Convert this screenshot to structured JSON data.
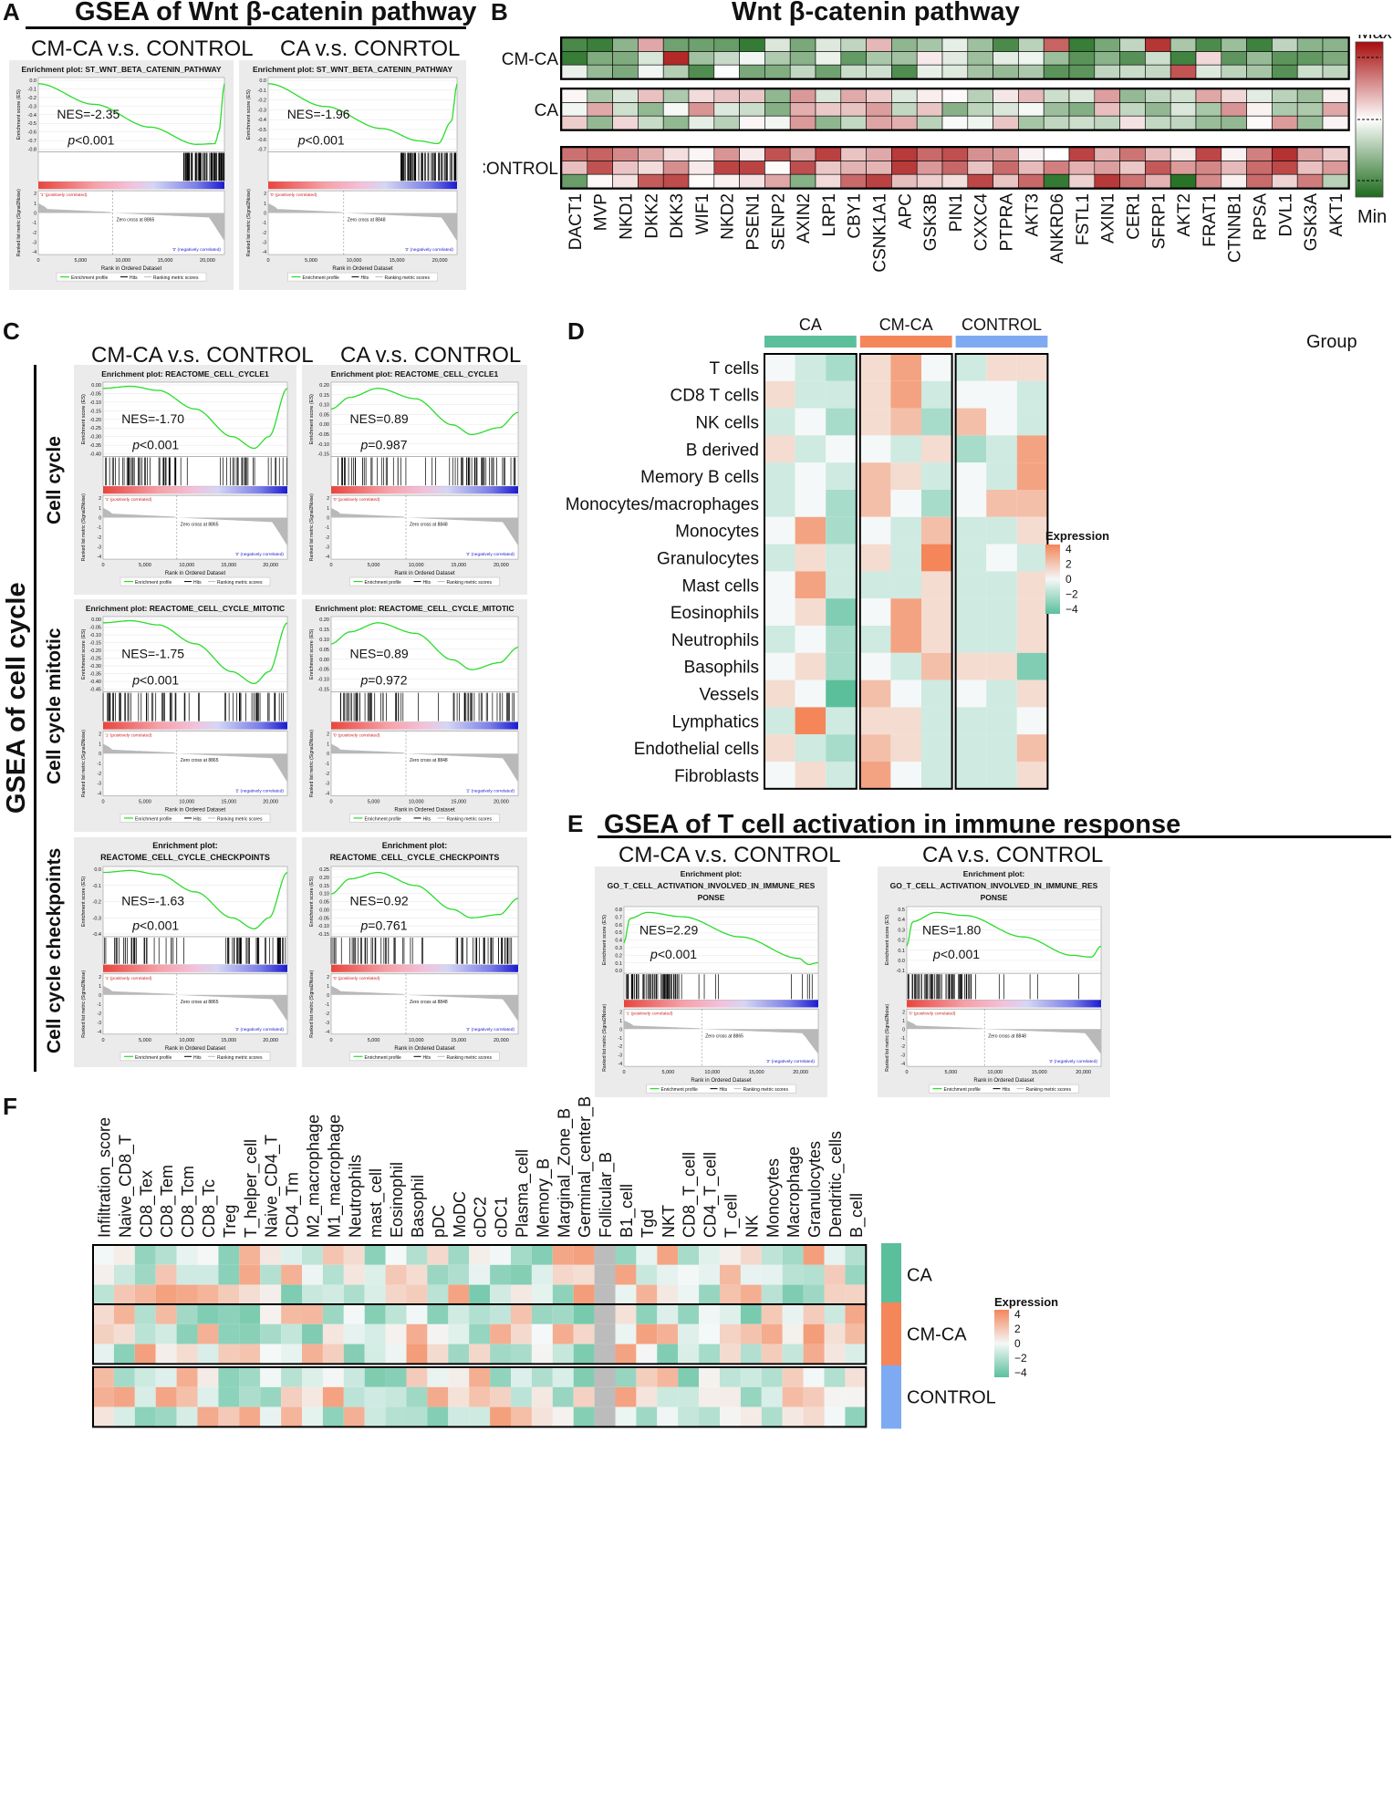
{
  "panels": {
    "a": "A",
    "b": "B",
    "c": "C",
    "d": "D",
    "e": "E",
    "f": "F"
  },
  "panel_a": {
    "title": "GSEA of Wnt β-catenin pathway",
    "col_titles": [
      "CM-CA v.s. CONTROL",
      "CA v.s. CONRTOL"
    ],
    "plots": [
      {
        "plot_title": "Enrichment plot: ST_WNT_BETA_CATENIN_PATHWAY",
        "nes": "NES=-2.35",
        "p": "p<0.001",
        "zero_cross": "Zero cross at 8865",
        "pos_label": "'1' (positively correlated)",
        "neg_label": "'2' (negatively correlated)",
        "es_ticks": [
          "0.0",
          "-0.1",
          "-0.2",
          "-0.3",
          "-0.4",
          "-0.5",
          "-0.6",
          "-0.7",
          "-0.8"
        ]
      },
      {
        "plot_title": "Enrichment plot: ST_WNT_BETA_CATENIN_PATHWAY",
        "nes": "NES=-1.96",
        "p": "p<0.001",
        "zero_cross": "Zero cross at 8848",
        "pos_label": "'0' (positively correlated)",
        "neg_label": "'2' (negatively correlated)",
        "es_ticks": [
          "0.0",
          "-0.1",
          "-0.2",
          "-0.3",
          "-0.4",
          "-0.5",
          "-0.6",
          "-0.7"
        ]
      }
    ]
  },
  "panel_b": {
    "title": "Wnt β-catenin pathway",
    "row_groups": [
      "CM-CA",
      "CA",
      "CONTROL"
    ],
    "genes": [
      "DACT1",
      "MVP",
      "NKD1",
      "DKK2",
      "DKK3",
      "WIF1",
      "NKD2",
      "PSEN1",
      "SENP2",
      "AXIN2",
      "LRP1",
      "CBY1",
      "CSNK1A1",
      "APC",
      "GSK3B",
      "PIN1",
      "CXXC4",
      "PTPRA",
      "AKT3",
      "ANKRD6",
      "FSTL1",
      "AXIN1",
      "CER1",
      "SFRP1",
      "AKT2",
      "FRAT1",
      "CTNNB1",
      "RPSA",
      "DVL1",
      "GSK3A",
      "AKT1"
    ],
    "legend_max": "Max",
    "legend_min": "Min"
  },
  "panel_c": {
    "col_titles": [
      "CM-CA v.s. CONTROL",
      "CA v.s. CONTROL"
    ],
    "side_title": "GSEA of cell cycle",
    "row_titles": [
      "Cell cycle",
      "Cell cycle mitotic",
      "Cell cycle checkpoints"
    ],
    "plots": [
      {
        "plot_title": "Enrichment plot: REACTOME_CELL_CYCLE1",
        "nes": "NES=-1.70",
        "p": "p<0.001",
        "zero_cross": "Zero cross at 8865",
        "pos_label": "'1' (positively correlated)",
        "neg_label": "'2' (negatively correlated)",
        "es_ticks": [
          "0.00",
          "-0.05",
          "-0.10",
          "-0.15",
          "-0.20",
          "-0.25",
          "-0.30",
          "-0.35",
          "-0.40"
        ]
      },
      {
        "plot_title": "Enrichment plot: REACTOME_CELL_CYCLE1",
        "nes": "NES=0.89",
        "p": "p=0.987",
        "zero_cross": "Zero cross at 8848",
        "pos_label": "'0' (positively correlated)",
        "neg_label": "'2' (negatively correlated)",
        "es_ticks": [
          "0.20",
          "0.15",
          "0.10",
          "0.05",
          "0.00",
          "-0.05",
          "-0.10",
          "-0.15"
        ]
      },
      {
        "plot_title": "Enrichment plot: REACTOME_CELL_CYCLE_MITOTIC",
        "nes": "NES=-1.75",
        "p": "p<0.001",
        "zero_cross": "Zero cross at 8865",
        "pos_label": "'1' (positively correlated)",
        "neg_label": "'2' (negatively correlated)",
        "es_ticks": [
          "0.00",
          "-0.05",
          "-0.10",
          "-0.15",
          "-0.20",
          "-0.25",
          "-0.30",
          "-0.35",
          "-0.40",
          "-0.45"
        ]
      },
      {
        "plot_title": "Enrichment plot: REACTOME_CELL_CYCLE_MITOTIC",
        "nes": "NES=0.89",
        "p": "p=0.972",
        "zero_cross": "Zero cross at 8848",
        "pos_label": "'0' (positively correlated)",
        "neg_label": "'2' (negatively correlated)",
        "es_ticks": [
          "0.20",
          "0.15",
          "0.10",
          "0.05",
          "0.00",
          "-0.05",
          "-0.10",
          "-0.15"
        ]
      },
      {
        "plot_title": "Enrichment plot: REACTOME_CELL_CYCLE_CHECKPOINTS",
        "nes": "NES=-1.63",
        "p": "p<0.001",
        "zero_cross": "Zero cross at 8865",
        "pos_label": "'1' (positively correlated)",
        "neg_label": "'2' (negatively correlated)",
        "es_ticks": [
          "0.0",
          "-0.1",
          "-0.2",
          "-0.3",
          "-0.4"
        ]
      },
      {
        "plot_title": "Enrichment plot: REACTOME_CELL_CYCLE_CHECKPOINTS",
        "nes": "NES=0.92",
        "p": "p=0.761",
        "zero_cross": "Zero cross at 8848",
        "pos_label": "'0' (positively correlated)",
        "neg_label": "'2' (negatively correlated)",
        "es_ticks": [
          "0.25",
          "0.20",
          "0.15",
          "0.10",
          "0.05",
          "0.00",
          "-0.05",
          "-0.10",
          "-0.15"
        ]
      }
    ]
  },
  "panel_d": {
    "group_label": "Group",
    "groups": [
      "CA",
      "CM-CA",
      "CONTROL"
    ],
    "group_colors": [
      "#5bbf9c",
      "#f4865a",
      "#7eaaf2"
    ],
    "rows": [
      "T cells",
      "CD8 T cells",
      "NK cells",
      "B derived",
      "Memory B cells",
      "Monocytes/macrophages",
      "Monocytes",
      "Granulocytes",
      "Mast cells",
      "Eosinophils",
      "Neutrophils",
      "Basophils",
      "Vessels",
      "Lymphatics",
      "Endothelial cells",
      "Fibroblasts"
    ],
    "legend_title": "Expression",
    "legend_ticks": [
      "4",
      "2",
      "0",
      "−2",
      "−4"
    ]
  },
  "panel_e": {
    "title": "GSEA of T cell activation in immune response",
    "col_titles": [
      "CM-CA v.s. CONTROL",
      "CA v.s. CONTROL"
    ],
    "plots": [
      {
        "plot_title": "Enrichment plot:",
        "plot_title2": "GO_T_CELL_ACTIVATION_INVOLVED_IN_IMMUNE_RES",
        "plot_title3": "PONSE",
        "nes": "NES=2.29",
        "p": "p<0.001",
        "zero_cross": "Zero cross at 8865",
        "pos_label": "'1' (positively correlated)",
        "neg_label": "'2' (negatively correlated)",
        "es_ticks": [
          "0.8",
          "0.7",
          "0.6",
          "0.5",
          "0.4",
          "0.3",
          "0.2",
          "0.1",
          "0.0"
        ]
      },
      {
        "plot_title": "Enrichment plot:",
        "plot_title2": "GO_T_CELL_ACTIVATION_INVOLVED_IN_IMMUNE_RES",
        "plot_title3": "PONSE",
        "nes": "NES=1.80",
        "p": "p<0.001",
        "zero_cross": "Zero cross at 8848",
        "pos_label": "'0' (positively correlated)",
        "neg_label": "'2' (negatively correlated)",
        "es_ticks": [
          "0.5",
          "0.4",
          "0.3",
          "0.2",
          "0.1",
          "0.0",
          "-0.1"
        ]
      }
    ]
  },
  "panel_f": {
    "columns": [
      "Infiltration_score",
      "Naive_CD8_T",
      "CD8_Tex",
      "CD8_Tem",
      "CD8_Tcm",
      "CD8_Tc",
      "Treg",
      "T_helper_cell",
      "Naive_CD4_T",
      "CD4_Tm",
      "M2_macrophage",
      "M1_macrophage",
      "Neutrophils",
      "mast_cell",
      "Eosinophil",
      "Basophil",
      "pDC",
      "MoDC",
      "cDC2",
      "cDC1",
      "Plasma_cell",
      "Memory_B",
      "Marginal_Zone_B",
      "Germinal_center_B",
      "Follicular_B",
      "B1_cell",
      "Tgd",
      "NKT",
      "CD8_T_cell",
      "CD4_T_cell",
      "T_cell",
      "NK",
      "Monocytes",
      "Macrophage",
      "Granulocytes",
      "Dendritic_cells",
      "B_cell"
    ],
    "groups": [
      "CA",
      "CM-CA",
      "CONTROL"
    ],
    "group_colors": [
      "#5bbf9c",
      "#f4865a",
      "#7eaaf2"
    ],
    "legend_title": "Expression",
    "legend_ticks": [
      "4",
      "2",
      "0",
      "−2",
      "−4"
    ]
  },
  "common": {
    "es_axis": "Enrichment score (ES)",
    "rank_axis": "Ranked list metric (Signal2Noise)",
    "x_axis": "Rank in Ordered Dataset",
    "x_ticks": [
      "0",
      "5,000",
      "10,000",
      "15,000",
      "20,000"
    ],
    "metric_ticks": [
      "2",
      "1",
      "0",
      "-1",
      "-2",
      "-3",
      "-4"
    ],
    "legend_profile": "Enrichment profile",
    "legend_hits": "Hits",
    "legend_metric": "Ranking metric scores"
  },
  "chart_data": {
    "type": "heatmap",
    "description_values": "approximate z-scored expression",
    "panel_d_values": [
      [
        0,
        -1,
        -2,
        1,
        3,
        0,
        -1,
        1,
        1
      ],
      [
        1,
        -1,
        -1,
        1,
        3,
        -1,
        0,
        0,
        -1
      ],
      [
        -1,
        0,
        -2,
        1,
        2,
        -2,
        2,
        0,
        -1
      ],
      [
        1,
        -1,
        0,
        0,
        -1,
        1,
        -2,
        -1,
        3
      ],
      [
        -1,
        0,
        -1,
        2,
        1,
        -1,
        0,
        -1,
        3
      ],
      [
        -1,
        0,
        -2,
        2,
        0,
        -2,
        0,
        2,
        2
      ],
      [
        0,
        3,
        -2,
        0,
        -1,
        2,
        -1,
        -1,
        1
      ],
      [
        -1,
        1,
        -1,
        1,
        -1,
        4,
        -1,
        0,
        -1
      ],
      [
        0,
        3,
        -1,
        -1,
        -1,
        1,
        -1,
        -1,
        1
      ],
      [
        0,
        1,
        -3,
        0,
        3,
        1,
        -1,
        -1,
        1
      ],
      [
        -1,
        0,
        -2,
        -1,
        3,
        1,
        -1,
        -1,
        1
      ],
      [
        0,
        1,
        -2,
        0,
        -1,
        2,
        1,
        1,
        -3
      ],
      [
        1,
        0,
        -4,
        2,
        0,
        -1,
        0,
        -1,
        1
      ],
      [
        -1,
        4,
        -1,
        1,
        1,
        -1,
        -1,
        -1,
        0
      ],
      [
        1,
        -1,
        -2,
        2,
        1,
        -1,
        -1,
        -1,
        2
      ],
      [
        0,
        1,
        -1,
        3,
        0,
        -1,
        -1,
        -1,
        1
      ]
    ]
  }
}
